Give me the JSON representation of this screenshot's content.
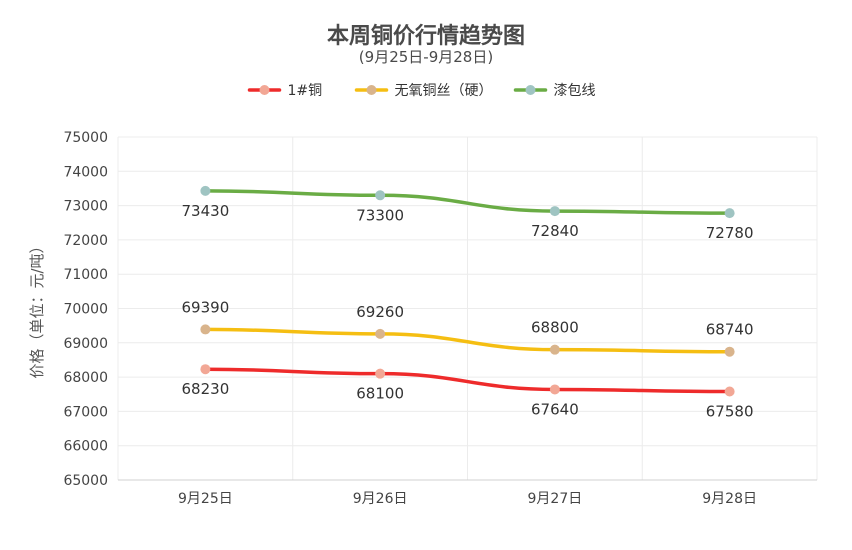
{
  "chart_data": {
    "type": "line",
    "title": "本周铜价行情趋势图",
    "subtitle": "(9月25日-9月28日)",
    "ylabel": "价格（单位：元/吨）",
    "xlabel": "",
    "categories": [
      "9月25日",
      "9月26日",
      "9月27日",
      "9月28日"
    ],
    "ylim": [
      65000,
      75000
    ],
    "yticks": [
      65000,
      66000,
      67000,
      68000,
      69000,
      70000,
      71000,
      72000,
      73000,
      74000,
      75000
    ],
    "grid": true,
    "legend_position": "top-center",
    "series": [
      {
        "name": "1#铜",
        "values": [
          68230,
          68100,
          67640,
          67580
        ],
        "color": "#ee2b2b",
        "marker_color": "#f2a795",
        "label_position": "below"
      },
      {
        "name": "无氧铜丝（硬）",
        "values": [
          69390,
          69260,
          68800,
          68740
        ],
        "color": "#f5be12",
        "marker_color": "#d9b48c",
        "label_position": "above"
      },
      {
        "name": "漆包线",
        "values": [
          73430,
          73300,
          72840,
          72780
        ],
        "color": "#6aac45",
        "marker_color": "#9fc4c2",
        "label_position": "below"
      }
    ]
  }
}
